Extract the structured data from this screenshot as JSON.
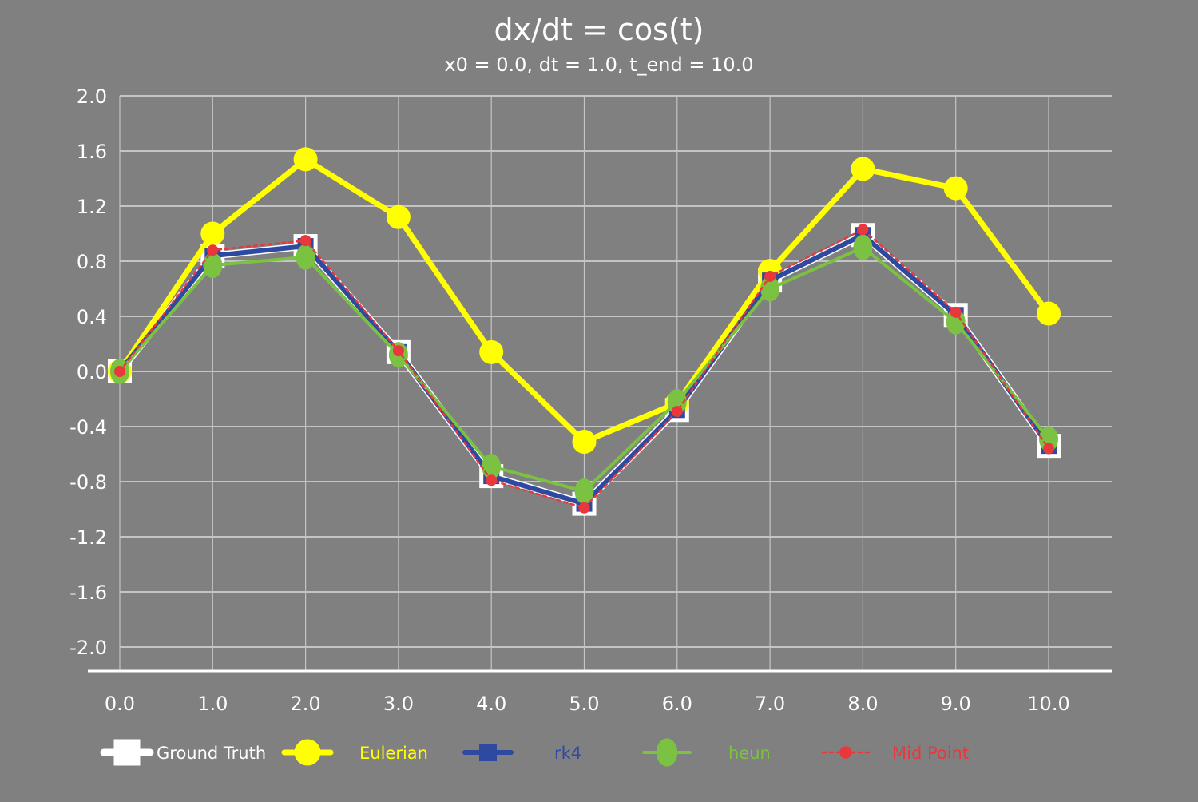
{
  "chart_data": {
    "type": "line",
    "title": "dx/dt = cos(t)",
    "subtitle": "x0 = 0.0, dt = 1.0, t_end = 10.0",
    "xlabel": "",
    "ylabel": "",
    "x": [
      0,
      1,
      2,
      3,
      4,
      5,
      6,
      7,
      8,
      9,
      10
    ],
    "x_tick_labels": [
      "0.0",
      "1.0",
      "2.0",
      "3.0",
      "4.0",
      "5.0",
      "6.0",
      "7.0",
      "8.0",
      "9.0",
      "10.0"
    ],
    "ylim": [
      -2.0,
      2.0
    ],
    "y_ticks": [
      2.0,
      1.6,
      1.2,
      0.8,
      0.4,
      0.0,
      -0.4,
      -0.8,
      -1.2,
      -1.6,
      -2.0
    ],
    "y_tick_labels": [
      "2.0",
      "1.6",
      "1.2",
      "0.8",
      "0.4",
      "0.0",
      "-0.4",
      "-0.8",
      "-1.2",
      "-1.6",
      "-2.0"
    ],
    "grid": true,
    "legend_position": "bottom",
    "series": [
      {
        "name": "Ground Truth",
        "color": "#ffffff",
        "marker": "square",
        "values": [
          0.0,
          0.84,
          0.91,
          0.14,
          -0.76,
          -0.96,
          -0.28,
          0.66,
          0.99,
          0.41,
          -0.54
        ]
      },
      {
        "name": "Eulerian",
        "color": "#ffff00",
        "marker": "circle",
        "values": [
          0.0,
          1.0,
          1.54,
          1.12,
          0.14,
          -0.51,
          -0.23,
          0.73,
          1.47,
          1.33,
          0.42
        ]
      },
      {
        "name": "rk4",
        "color": "#2e4aa0",
        "marker": "square",
        "values": [
          0.0,
          0.84,
          0.91,
          0.14,
          -0.76,
          -0.96,
          -0.28,
          0.66,
          0.99,
          0.41,
          -0.54
        ]
      },
      {
        "name": "heun",
        "color": "#7bc142",
        "marker": "ellipse",
        "values": [
          0.0,
          0.77,
          0.83,
          0.12,
          -0.69,
          -0.87,
          -0.22,
          0.6,
          0.9,
          0.36,
          -0.49
        ]
      },
      {
        "name": "Mid Point",
        "color": "#e8383c",
        "marker": "dot",
        "dashed": true,
        "values": [
          0.0,
          0.88,
          0.95,
          0.15,
          -0.79,
          -0.99,
          -0.29,
          0.69,
          1.03,
          0.43,
          -0.56
        ]
      }
    ]
  }
}
